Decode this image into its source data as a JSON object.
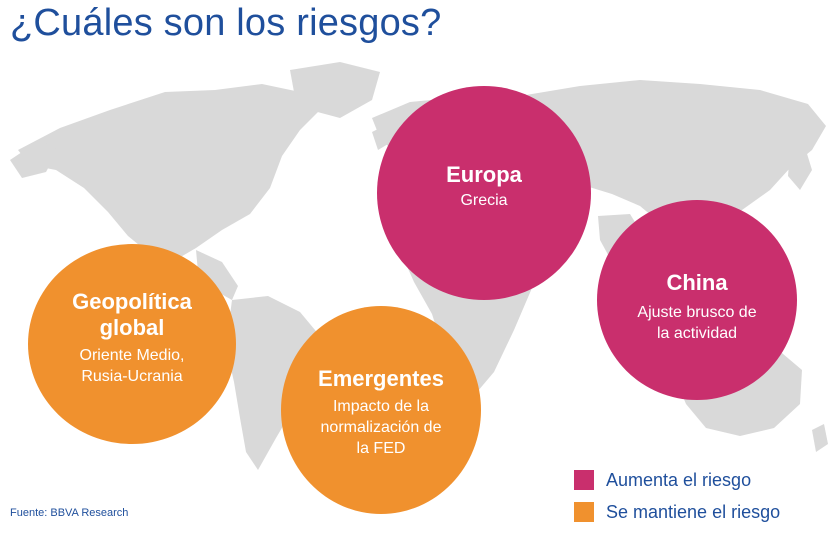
{
  "title": "¿Cuáles son los riesgos?",
  "colors": {
    "title": "#1f4f9c",
    "orange": "#f0912e",
    "pink": "#c92f6d",
    "map": "#d9d9d9"
  },
  "bubbles": {
    "geopolitica": {
      "heading": "Geopolítica\nglobal",
      "subtitle": "Oriente Medio,\nRusia-Ucrania",
      "status": "Se mantiene el riesgo"
    },
    "europa": {
      "heading": "Europa",
      "subtitle": "Grecia",
      "status": "Aumenta el riesgo"
    },
    "china": {
      "heading": "China",
      "subtitle": "Ajuste brusco de\nla actividad",
      "status": "Aumenta el riesgo"
    },
    "emergentes": {
      "heading": "Emergentes",
      "subtitle": "Impacto de la\nnormalización de\nla FED",
      "status": "Se mantiene el riesgo"
    }
  },
  "legend": [
    {
      "label": "Aumenta el riesgo",
      "color": "#c92f6d"
    },
    {
      "label": "Se mantiene el riesgo",
      "color": "#f0912e"
    }
  ],
  "source": "Fuente: BBVA Research"
}
